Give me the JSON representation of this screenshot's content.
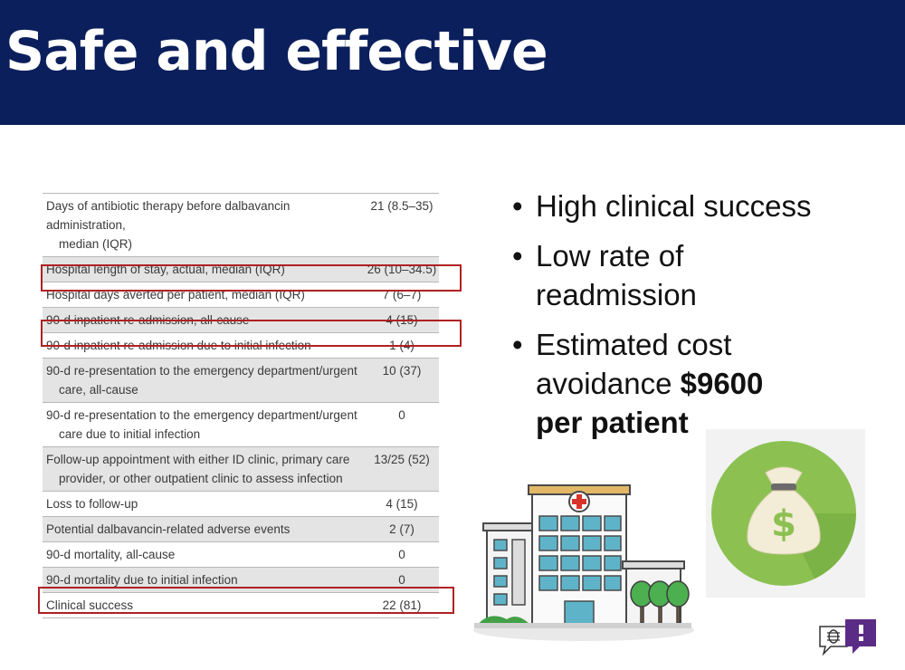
{
  "slide": {
    "title": "Safe and effective"
  },
  "table": {
    "rows": [
      {
        "label": "Days of antibiotic therapy before dalbavancin administration,",
        "label_cont": "median (IQR)",
        "value": "21 (8.5–35)",
        "shaded": false
      },
      {
        "label": "Hospital length of stay, actual, median (IQR)",
        "label_cont": "",
        "value": "26 (10–34.5)",
        "shaded": true
      },
      {
        "label": "Hospital days averted per patient, median (IQR)",
        "label_cont": "",
        "value": "7 (6–7)",
        "shaded": false
      },
      {
        "label": "90-d inpatient re-admission, all-cause",
        "label_cont": "",
        "value": "4 (15)",
        "shaded": true
      },
      {
        "label": "90-d inpatient re-admission due to initial infection",
        "label_cont": "",
        "value": "1 (4)",
        "shaded": false
      },
      {
        "label": "90-d re-presentation to the emergency department/urgent",
        "label_cont": "care, all-cause",
        "value": "10 (37)",
        "shaded": true
      },
      {
        "label": "90-d re-presentation to the emergency department/urgent",
        "label_cont": "care due to initial infection",
        "value": "0",
        "shaded": false
      },
      {
        "label": "Follow-up appointment with either ID clinic, primary care",
        "label_cont": "provider, or other outpatient clinic to assess infection",
        "value": "13/25 (52)",
        "shaded": true
      },
      {
        "label": "Loss to follow-up",
        "label_cont": "",
        "value": "4 (15)",
        "shaded": false
      },
      {
        "label": "Potential dalbavancin-related adverse events",
        "label_cont": "",
        "value": "2 (7)",
        "shaded": true
      },
      {
        "label": "90-d mortality, all-cause",
        "label_cont": "",
        "value": "0",
        "shaded": false
      },
      {
        "label": "90-d mortality due to initial infection",
        "label_cont": "",
        "value": "0",
        "shaded": true
      },
      {
        "label": "Clinical success",
        "label_cont": "",
        "value": "22 (81)",
        "shaded": false
      }
    ]
  },
  "bullets": {
    "b1": "High clinical success",
    "b2_line1": "Low rate of",
    "b2_line2": "readmission",
    "b3_line1": "Estimated cost",
    "b3_line2_pre": "avoidance ",
    "b3_amount": "$9600",
    "b3_line3": "per patient"
  },
  "icons": {
    "money": "money-bag-icon",
    "hospital": "hospital-illustration",
    "chat": "chat-bug-icon"
  },
  "colors": {
    "header": "#0b1f5c",
    "highlight": "#b02121",
    "money_circle": "#8cc152"
  }
}
